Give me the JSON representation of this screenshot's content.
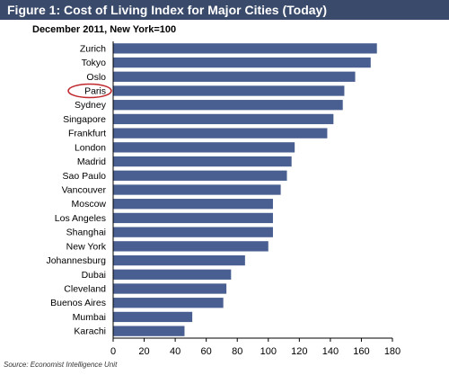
{
  "header": {
    "title": "Figure 1: Cost of Living Index for Major Cities (Today)"
  },
  "footer": {
    "source": "Source: Economist Intelligence Unit"
  },
  "colors": {
    "bar": "#4a5f91",
    "title_bar": "#3a4a6b",
    "highlight_ring": "#c0282d"
  },
  "chart_data": {
    "type": "bar",
    "orientation": "horizontal",
    "title": "Figure 1: Cost of Living Index for Major Cities (Today)",
    "subtitle": "December 2011, New York=100",
    "xlabel": "",
    "ylabel": "",
    "xlim": [
      0,
      180
    ],
    "xticks": [
      0,
      20,
      40,
      60,
      80,
      100,
      120,
      140,
      160,
      180
    ],
    "grid": false,
    "legend": "none",
    "highlighted_category": "Paris",
    "categories": [
      "Zurich",
      "Tokyo",
      "Oslo",
      "Paris",
      "Sydney",
      "Singapore",
      "Frankfurt",
      "London",
      "Madrid",
      "Sao Paulo",
      "Vancouver",
      "Moscow",
      "Los Angeles",
      "Shanghai",
      "New York",
      "Johannesburg",
      "Dubai",
      "Cleveland",
      "Buenos Aires",
      "Mumbai",
      "Karachi"
    ],
    "values": [
      170,
      166,
      156,
      149,
      148,
      142,
      138,
      117,
      115,
      112,
      108,
      103,
      103,
      103,
      100,
      85,
      76,
      73,
      71,
      51,
      46
    ]
  }
}
